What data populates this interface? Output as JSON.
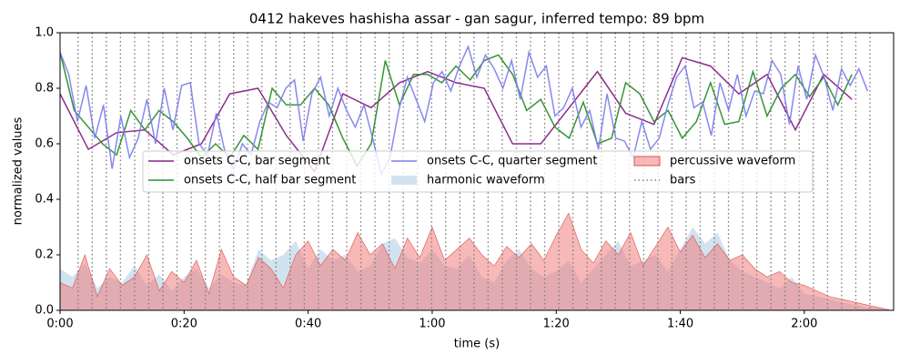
{
  "chart_data": {
    "type": "line",
    "title": "0412 hakeves hashisha assar - gan sagur, inferred tempo: 89 bpm",
    "xlabel": "time (s)",
    "ylabel": "normalized values",
    "xlim": [
      0,
      134.4
    ],
    "ylim": [
      0,
      1
    ],
    "xticks": [
      {
        "value": 0,
        "label": "0:00"
      },
      {
        "value": 20,
        "label": "0:20"
      },
      {
        "value": 40,
        "label": "0:40"
      },
      {
        "value": 60,
        "label": "1:00"
      },
      {
        "value": 80,
        "label": "1:20"
      },
      {
        "value": 100,
        "label": "1:40"
      },
      {
        "value": 120,
        "label": "2:00"
      }
    ],
    "yticks": [
      {
        "value": 0,
        "label": "0.0"
      },
      0.2,
      0.4,
      0.6,
      0.8,
      {
        "value": 1,
        "label": "1.0"
      }
    ],
    "grid": false,
    "series": [
      {
        "name": "onsets C-C, bar segment",
        "kind": "line",
        "color": "#882288",
        "x": [
          0,
          4.56,
          9.12,
          13.68,
          18.24,
          22.8,
          27.36,
          31.92,
          36.48,
          41.04,
          45.6,
          50.16,
          54.72,
          59.28,
          63.84,
          68.4,
          72.96,
          77.52,
          82.08,
          86.64,
          91.2,
          95.76,
          100.32,
          104.88,
          109.44,
          114,
          118.56,
          123.12,
          127.68
        ],
        "values": [
          0.78,
          0.58,
          0.64,
          0.65,
          0.56,
          0.6,
          0.78,
          0.8,
          0.63,
          0.5,
          0.78,
          0.73,
          0.82,
          0.86,
          0.82,
          0.8,
          0.6,
          0.6,
          0.73,
          0.86,
          0.71,
          0.67,
          0.91,
          0.88,
          0.78,
          0.85,
          0.65,
          0.85,
          0.76
        ]
      },
      {
        "name": "onsets C-C, half bar segment",
        "kind": "line",
        "color": "#2a8f2a",
        "x": [
          0,
          2.28,
          4.56,
          6.84,
          9.12,
          11.4,
          13.68,
          15.96,
          18.24,
          20.52,
          22.8,
          25.08,
          27.36,
          29.64,
          31.92,
          34.2,
          36.48,
          38.76,
          41.04,
          43.32,
          45.6,
          47.88,
          50.16,
          52.44,
          54.72,
          57,
          59.28,
          61.56,
          63.84,
          66.12,
          68.4,
          70.68,
          72.96,
          75.24,
          77.52,
          79.8,
          82.08,
          84.36,
          86.64,
          88.92,
          91.2,
          93.48,
          95.76,
          98.04,
          100.32,
          102.6,
          104.88,
          107.16,
          109.44,
          111.72,
          114,
          116.28,
          118.56,
          120.84,
          123.12,
          125.4,
          127.68
        ],
        "values": [
          0.93,
          0.72,
          0.66,
          0.6,
          0.56,
          0.72,
          0.65,
          0.72,
          0.68,
          0.62,
          0.55,
          0.6,
          0.55,
          0.63,
          0.58,
          0.8,
          0.74,
          0.74,
          0.8,
          0.74,
          0.62,
          0.52,
          0.6,
          0.9,
          0.74,
          0.85,
          0.85,
          0.82,
          0.88,
          0.83,
          0.9,
          0.92,
          0.85,
          0.72,
          0.76,
          0.66,
          0.62,
          0.75,
          0.6,
          0.62,
          0.82,
          0.78,
          0.68,
          0.72,
          0.62,
          0.68,
          0.82,
          0.67,
          0.68,
          0.86,
          0.7,
          0.8,
          0.85,
          0.77,
          0.84,
          0.74,
          0.85
        ]
      },
      {
        "name": "onsets C-C, quarter segment",
        "kind": "line",
        "color": "#7b7bee",
        "x": [
          0,
          1.4,
          2.8,
          4.2,
          5.6,
          7,
          8.4,
          9.8,
          11.2,
          12.6,
          14,
          15.4,
          16.8,
          18.2,
          19.6,
          21,
          22.4,
          23.8,
          25.2,
          26.6,
          28,
          29.4,
          30.8,
          32.2,
          33.6,
          35,
          36.4,
          37.8,
          39.2,
          40.6,
          42,
          43.4,
          44.8,
          46.2,
          47.6,
          49,
          50.4,
          51.8,
          53.2,
          54.6,
          56,
          57.4,
          58.8,
          60.2,
          61.6,
          63,
          64.4,
          65.8,
          67.2,
          68.6,
          70,
          71.4,
          72.8,
          74.2,
          75.6,
          77,
          78.4,
          79.8,
          81.2,
          82.6,
          84,
          85.4,
          86.8,
          88.2,
          89.6,
          91,
          92.4,
          93.8,
          95.2,
          96.6,
          98,
          99.4,
          100.8,
          102.2,
          103.6,
          105,
          106.4,
          107.8,
          109.2,
          110.6,
          112,
          113.4,
          114.8,
          116.2,
          117.6,
          119,
          120.4,
          121.8,
          123.2,
          124.6,
          126,
          127.4,
          128.8,
          130.2
        ],
        "values": [
          0.93,
          0.85,
          0.68,
          0.81,
          0.62,
          0.74,
          0.51,
          0.7,
          0.55,
          0.62,
          0.76,
          0.6,
          0.8,
          0.65,
          0.81,
          0.82,
          0.6,
          0.56,
          0.71,
          0.57,
          0.51,
          0.6,
          0.56,
          0.68,
          0.75,
          0.73,
          0.8,
          0.83,
          0.61,
          0.78,
          0.84,
          0.7,
          0.8,
          0.72,
          0.66,
          0.74,
          0.62,
          0.49,
          0.55,
          0.72,
          0.84,
          0.76,
          0.68,
          0.82,
          0.86,
          0.79,
          0.88,
          0.95,
          0.84,
          0.92,
          0.87,
          0.8,
          0.9,
          0.76,
          0.93,
          0.84,
          0.88,
          0.7,
          0.73,
          0.8,
          0.66,
          0.72,
          0.58,
          0.78,
          0.62,
          0.61,
          0.55,
          0.68,
          0.58,
          0.62,
          0.74,
          0.84,
          0.88,
          0.73,
          0.75,
          0.63,
          0.82,
          0.72,
          0.85,
          0.7,
          0.79,
          0.78,
          0.9,
          0.85,
          0.67,
          0.88,
          0.76,
          0.92,
          0.84,
          0.72,
          0.87,
          0.81,
          0.87,
          0.79
        ]
      },
      {
        "name": "harmonic waveform",
        "kind": "area",
        "color": "#c5dcec",
        "x": [
          0,
          2,
          4,
          6,
          8,
          10,
          12,
          14,
          16,
          18,
          20,
          22,
          24,
          26,
          28,
          30,
          32,
          34,
          36,
          38,
          40,
          42,
          44,
          46,
          48,
          50,
          52,
          54,
          56,
          58,
          60,
          62,
          64,
          66,
          68,
          70,
          72,
          74,
          76,
          78,
          80,
          82,
          84,
          86,
          88,
          90,
          92,
          94,
          96,
          98,
          100,
          102,
          104,
          106,
          108,
          110,
          112,
          114,
          116,
          118,
          120,
          122,
          124,
          126,
          128,
          130,
          132,
          134
        ],
        "values": [
          0.15,
          0.12,
          0.17,
          0.08,
          0.12,
          0.1,
          0.16,
          0.09,
          0.13,
          0.07,
          0.12,
          0.15,
          0.08,
          0.13,
          0.1,
          0.09,
          0.22,
          0.18,
          0.2,
          0.25,
          0.15,
          0.22,
          0.18,
          0.2,
          0.14,
          0.16,
          0.24,
          0.26,
          0.19,
          0.17,
          0.22,
          0.16,
          0.15,
          0.2,
          0.12,
          0.1,
          0.18,
          0.22,
          0.15,
          0.12,
          0.14,
          0.18,
          0.1,
          0.15,
          0.2,
          0.25,
          0.16,
          0.18,
          0.2,
          0.14,
          0.22,
          0.3,
          0.24,
          0.28,
          0.18,
          0.14,
          0.12,
          0.1,
          0.08,
          0.12,
          0.06,
          0.05,
          0.04,
          0.03,
          0.02,
          0.01,
          0.01,
          0
        ]
      },
      {
        "name": "percussive waveform",
        "kind": "area",
        "color": "#f07d7d",
        "x": [
          0,
          2,
          4,
          6,
          8,
          10,
          12,
          14,
          16,
          18,
          20,
          22,
          24,
          26,
          28,
          30,
          32,
          34,
          36,
          38,
          40,
          42,
          44,
          46,
          48,
          50,
          52,
          54,
          56,
          58,
          60,
          62,
          64,
          66,
          68,
          70,
          72,
          74,
          76,
          78,
          80,
          82,
          84,
          86,
          88,
          90,
          92,
          94,
          96,
          98,
          100,
          102,
          104,
          106,
          108,
          110,
          112,
          114,
          116,
          118,
          120,
          122,
          124,
          126,
          128,
          130,
          132,
          134
        ],
        "values": [
          0.1,
          0.08,
          0.2,
          0.05,
          0.15,
          0.09,
          0.12,
          0.2,
          0.07,
          0.14,
          0.1,
          0.18,
          0.06,
          0.22,
          0.12,
          0.09,
          0.19,
          0.15,
          0.08,
          0.2,
          0.25,
          0.16,
          0.22,
          0.18,
          0.28,
          0.2,
          0.24,
          0.15,
          0.26,
          0.19,
          0.3,
          0.18,
          0.22,
          0.26,
          0.2,
          0.16,
          0.23,
          0.19,
          0.24,
          0.18,
          0.27,
          0.35,
          0.22,
          0.17,
          0.25,
          0.2,
          0.28,
          0.16,
          0.23,
          0.3,
          0.21,
          0.27,
          0.19,
          0.24,
          0.18,
          0.2,
          0.15,
          0.12,
          0.14,
          0.1,
          0.09,
          0.07,
          0.05,
          0.04,
          0.03,
          0.02,
          0.01,
          0
        ]
      },
      {
        "name": "bars",
        "kind": "vlines",
        "color": "#808080",
        "x": [
          2.9,
          5.18,
          7.46,
          9.74,
          12.02,
          14.3,
          16.58,
          18.86,
          21.14,
          23.42,
          25.7,
          27.98,
          30.26,
          32.54,
          34.82,
          37.1,
          39.38,
          41.66,
          43.94,
          46.22,
          48.5,
          50.78,
          53.06,
          55.34,
          57.62,
          59.9,
          62.18,
          64.46,
          66.74,
          69.02,
          71.3,
          73.58,
          75.86,
          78.14,
          80.42,
          82.7,
          84.98,
          87.26,
          89.54,
          91.82,
          94.1,
          96.38,
          98.66,
          100.94,
          103.22,
          105.5,
          107.78,
          110.06,
          112.34,
          114.62,
          116.9,
          119.18,
          121.46,
          123.74,
          126.02,
          128.3,
          130.58
        ]
      }
    ]
  }
}
